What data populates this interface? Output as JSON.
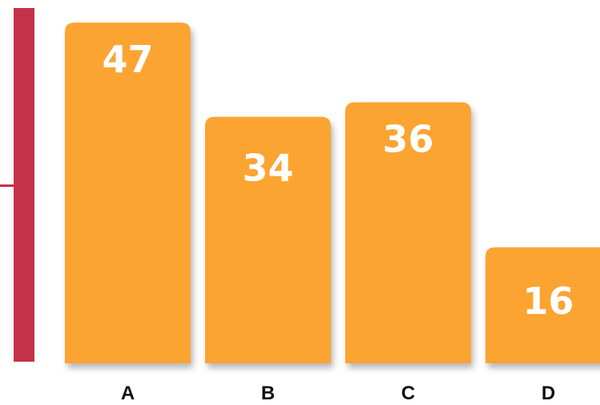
{
  "colors": {
    "bar": "#FCA433",
    "axis": "#C4324A",
    "background": "#FFFFFF",
    "value_text": "#FFFFFF",
    "category_text": "#111111"
  },
  "chart_data": {
    "type": "bar",
    "categories": [
      "A",
      "B",
      "C",
      "D"
    ],
    "values": [
      47,
      34,
      36,
      16
    ],
    "value_labels": [
      "47",
      "34",
      "36",
      "16"
    ],
    "title": "",
    "xlabel": "",
    "ylabel": "",
    "ylim": [
      0,
      49
    ],
    "grid": false,
    "legend": "none"
  }
}
